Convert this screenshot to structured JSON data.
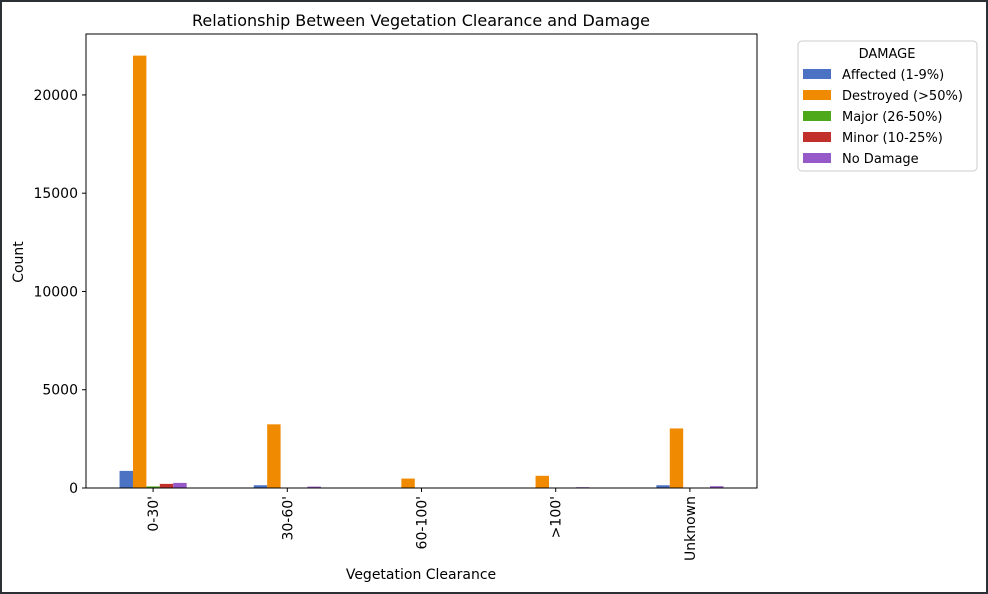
{
  "chart_data": {
    "type": "bar",
    "title": "Relationship Between Vegetation Clearance and Damage",
    "xlabel": "Vegetation Clearance",
    "ylabel": "Count",
    "categories": [
      "0-30'",
      "30-60'",
      "60-100'",
      ">100'",
      "Unknown"
    ],
    "ylim": [
      0,
      23100
    ],
    "yticks": [
      0,
      5000,
      10000,
      15000,
      20000
    ],
    "ytick_labels": [
      "0",
      "5000",
      "10000",
      "15000",
      "20000"
    ],
    "legend_title": "DAMAGE",
    "legend_position": "upper-right-outside",
    "grid": false,
    "series": [
      {
        "name": "Affected (1-9%)",
        "color": "#4c72c4",
        "values": [
          870,
          140,
          10,
          20,
          140
        ]
      },
      {
        "name": "Destroyed (>50%)",
        "color": "#f08a00",
        "values": [
          22000,
          3240,
          480,
          620,
          3030
        ]
      },
      {
        "name": "Major (26-50%)",
        "color": "#4da81a",
        "values": [
          80,
          15,
          5,
          5,
          15
        ]
      },
      {
        "name": "Minor (10-25%)",
        "color": "#c2302b",
        "values": [
          210,
          25,
          5,
          10,
          25
        ]
      },
      {
        "name": "No Damage",
        "color": "#9659c8",
        "values": [
          260,
          70,
          5,
          40,
          90
        ]
      }
    ]
  }
}
